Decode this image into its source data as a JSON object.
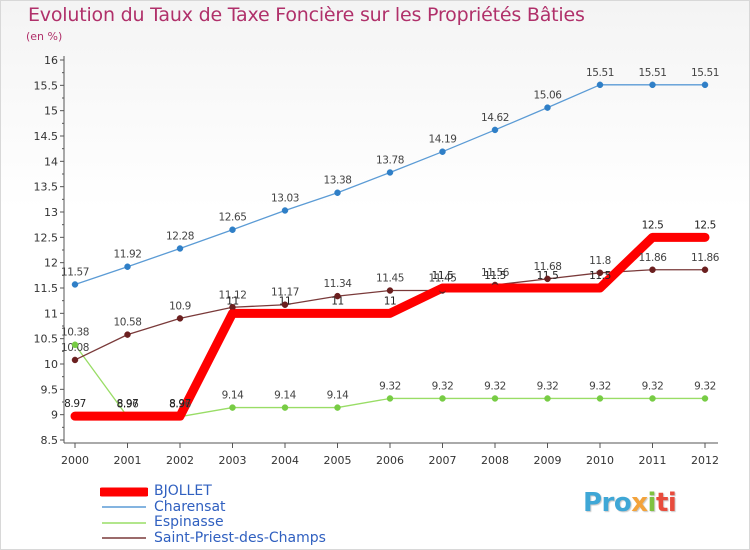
{
  "title": "Evolution du Taux de Taxe Foncière sur les Propriétés Bâties",
  "subtitle": "(en %)",
  "brand": {
    "p1": "Pro",
    "p2": "x",
    "p3": "i",
    "p4": "ti"
  },
  "colors": {
    "title": "#b0306a",
    "axis": "#555555",
    "legend_text": "#3060c0"
  },
  "chart_data": {
    "type": "line",
    "title": "Evolution du Taux de Taxe Foncière sur les Propriétés Bâties",
    "ylabel": "(en %)",
    "x": [
      "2000",
      "2001",
      "2002",
      "2003",
      "2004",
      "2005",
      "2006",
      "2007",
      "2008",
      "2009",
      "2010",
      "2011",
      "2012"
    ],
    "ylim": [
      8.5,
      16
    ],
    "yticks": [
      "8.5",
      "9",
      "9.5",
      "10",
      "10.5",
      "11",
      "11.5",
      "12",
      "12.5",
      "13",
      "13.5",
      "14",
      "14.5",
      "15",
      "15.5",
      "16"
    ],
    "legend_position": "bottom-left",
    "series": [
      {
        "name": "BJOLLET",
        "color": "#ff0000",
        "weight": "thick",
        "values": [
          8.97,
          8.97,
          8.97,
          11,
          11,
          11,
          11,
          11.5,
          11.5,
          11.5,
          11.5,
          12.5,
          12.5
        ],
        "labels": [
          "8.97",
          "8.97",
          "8.97",
          "11",
          "11",
          "11",
          "11",
          "11.5",
          "11.5",
          "11.5",
          "11.5",
          "12.5",
          "12.5"
        ]
      },
      {
        "name": "Charensat",
        "color": "#5b9bd5",
        "marker": "#2f7fc7",
        "values": [
          11.57,
          11.92,
          12.28,
          12.65,
          13.03,
          13.38,
          13.78,
          14.19,
          14.62,
          15.06,
          15.51,
          15.51,
          15.51
        ],
        "labels": [
          "11.57",
          "11.92",
          "12.28",
          "12.65",
          "13.03",
          "13.38",
          "13.78",
          "14.19",
          "14.62",
          "15.06",
          "15.51",
          "15.51",
          "15.51"
        ]
      },
      {
        "name": "Espinasse",
        "color": "#99dd66",
        "marker": "#77cc44",
        "values": [
          10.38,
          8.96,
          8.96,
          9.14,
          9.14,
          9.14,
          9.32,
          9.32,
          9.32,
          9.32,
          9.32,
          9.32,
          9.32
        ],
        "labels": [
          "10.38",
          "8.96",
          "8.96",
          "9.14",
          "9.14",
          "9.14",
          "9.32",
          "9.32",
          "9.32",
          "9.32",
          "9.32",
          "9.32",
          "9.32"
        ]
      },
      {
        "name": "Saint-Priest-des-Champs",
        "color": "#7a3a3a",
        "marker": "#6b1f1f",
        "values": [
          10.08,
          10.58,
          10.9,
          11.12,
          11.17,
          11.34,
          11.45,
          11.45,
          11.56,
          11.68,
          11.8,
          11.86,
          11.86
        ],
        "labels": [
          "10.08",
          "10.58",
          "10.9",
          "11.12",
          "11.17",
          "11.34",
          "11.45",
          "11.45",
          "11.56",
          "11.68",
          "11.8",
          "11.86",
          "11.86"
        ]
      }
    ]
  }
}
